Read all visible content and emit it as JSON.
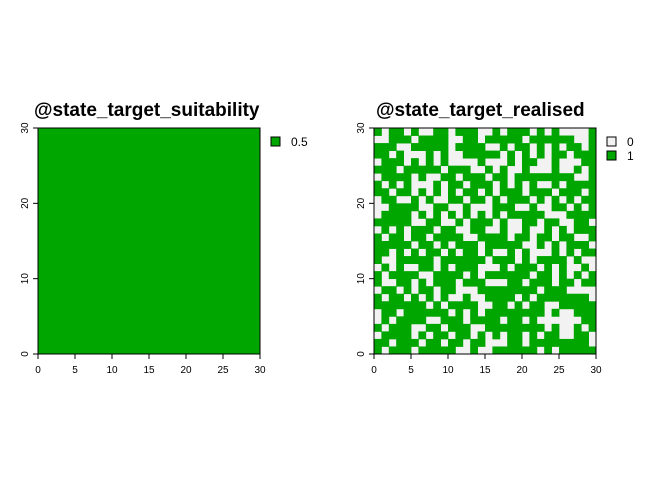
{
  "colors": {
    "green": "#00A600",
    "background_cell": "#F2F2F2",
    "axis": "#000000"
  },
  "chart_data": [
    {
      "type": "heatmap",
      "title": "@state_target_suitability",
      "xlim": [
        0,
        30
      ],
      "ylim": [
        0,
        30
      ],
      "x_ticks": [
        "0",
        "5",
        "10",
        "15",
        "20",
        "25",
        "30"
      ],
      "y_ticks": [
        "0",
        "10",
        "20",
        "30"
      ],
      "legend": [
        {
          "label": "0.5",
          "color": "#00A600"
        }
      ],
      "grid": "off",
      "value": 0.5
    },
    {
      "type": "heatmap",
      "title": "@state_target_realised",
      "xlim": [
        0,
        30
      ],
      "ylim": [
        0,
        30
      ],
      "x_ticks": [
        "0",
        "5",
        "10",
        "15",
        "20",
        "25",
        "30"
      ],
      "y_ticks": [
        "0",
        "10",
        "20",
        "30"
      ],
      "legend": [
        {
          "label": "0",
          "color": "#F2F2F2"
        },
        {
          "label": "1",
          "color": "#00A600"
        }
      ],
      "grid": "off",
      "values": [
        "101101001101110010111010100001",
        "001110111100110111110111111001",
        "111001111101111001011010101101",
        "110100010100111110101010110111",
        "011101010100001000101100100011",
        "111011111011100101001000100101",
        "011110100110111011011111111001",
        "101010001011011101010100101111",
        "110110101010110101110111011101",
        "011001010011011010111010101011",
        "001111001100100011100100110101",
        "011110101010101010111110001111",
        "111110011001011101001101100110",
        "010101110110011001001001010111",
        "101101101111001111011011011001",
        "111110110101110111110010101110",
        "110101011010110100101000101011",
        "100111110111111011101011110100",
        "010100110101110001011101010010",
        "101111001111010111111011010101",
        "100110101110111000110111011011",
        "011010110110001111111101110000",
        "101101010100100111101011111110",
        "111111101011110011010110011111",
        "011011111101010111111110100111",
        "010111100111011110110100000011",
        "101110011011100111111110100101",
        "011110101101101010110101100110",
        "110111011011011000110111111110",
        "101110111110010011111101011111"
      ]
    }
  ]
}
